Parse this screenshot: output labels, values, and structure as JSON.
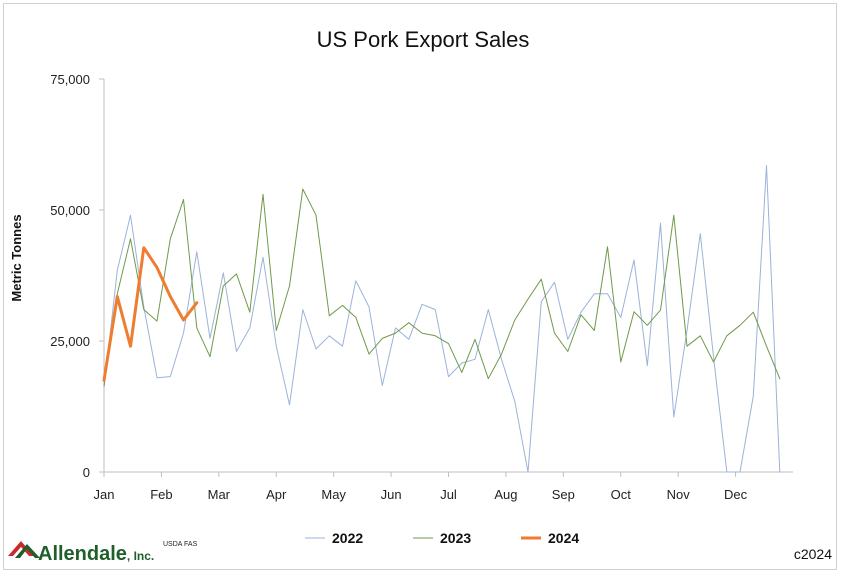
{
  "chart_data": {
    "type": "line",
    "title": "US Pork Export Sales",
    "xlabel": "",
    "ylabel": "Metric Tonnes",
    "ylim": [
      0,
      75000
    ],
    "yticks": [
      0,
      25000,
      50000,
      75000
    ],
    "ytick_labels": [
      "0",
      "25,000",
      "50,000",
      "75,000"
    ],
    "x_unit": "week of year",
    "xlim": [
      1,
      53
    ],
    "month_labels": [
      "Jan",
      "Feb",
      "Mar",
      "Apr",
      "May",
      "Jun",
      "Jul",
      "Aug",
      "Sep",
      "Oct",
      "Nov",
      "Dec"
    ],
    "grid": false,
    "legend_position": "bottom",
    "series": [
      {
        "name": "2022",
        "color": "#9bb3d8",
        "width": 1,
        "values": [
          16000,
          38500,
          49000,
          31500,
          18000,
          18200,
          26500,
          42000,
          25500,
          38000,
          23000,
          27500,
          41000,
          24000,
          12800,
          31000,
          23500,
          26000,
          24000,
          36500,
          31500,
          16500,
          27500,
          25300,
          32000,
          31000,
          18200,
          20800,
          21500,
          31000,
          21500,
          13500,
          0,
          32500,
          36200,
          25300,
          30500,
          34000,
          34000,
          29500,
          40500,
          20300,
          47500,
          10500,
          27000,
          45500,
          22000,
          0,
          0,
          14500,
          58500,
          0
        ]
      },
      {
        "name": "2023",
        "color": "#70994a",
        "width": 1,
        "values": [
          16500,
          34000,
          44500,
          31000,
          28800,
          44500,
          52000,
          27500,
          22000,
          35500,
          37800,
          30500,
          53000,
          27000,
          35500,
          54000,
          49000,
          29800,
          31800,
          29500,
          22500,
          25500,
          26500,
          28500,
          26500,
          26000,
          24500,
          19000,
          25300,
          17800,
          22500,
          29000,
          33000,
          36800,
          26500,
          23000,
          30000,
          27000,
          43000,
          21000,
          30600,
          28000,
          30900,
          49000,
          24000,
          26000,
          21000,
          26000,
          28000,
          30500,
          24000,
          17800
        ]
      },
      {
        "name": "2024",
        "color": "#ee7d31",
        "width": 3,
        "values": [
          17500,
          33500,
          24000,
          42800,
          39000,
          33500,
          29000,
          32300
        ]
      }
    ],
    "source_note": "USDA FAS",
    "copyright": "c2024"
  },
  "brand": {
    "logo_name": "Allendale",
    "logo_suffix": ", Inc.",
    "logo_color": "#1f5f2a"
  }
}
